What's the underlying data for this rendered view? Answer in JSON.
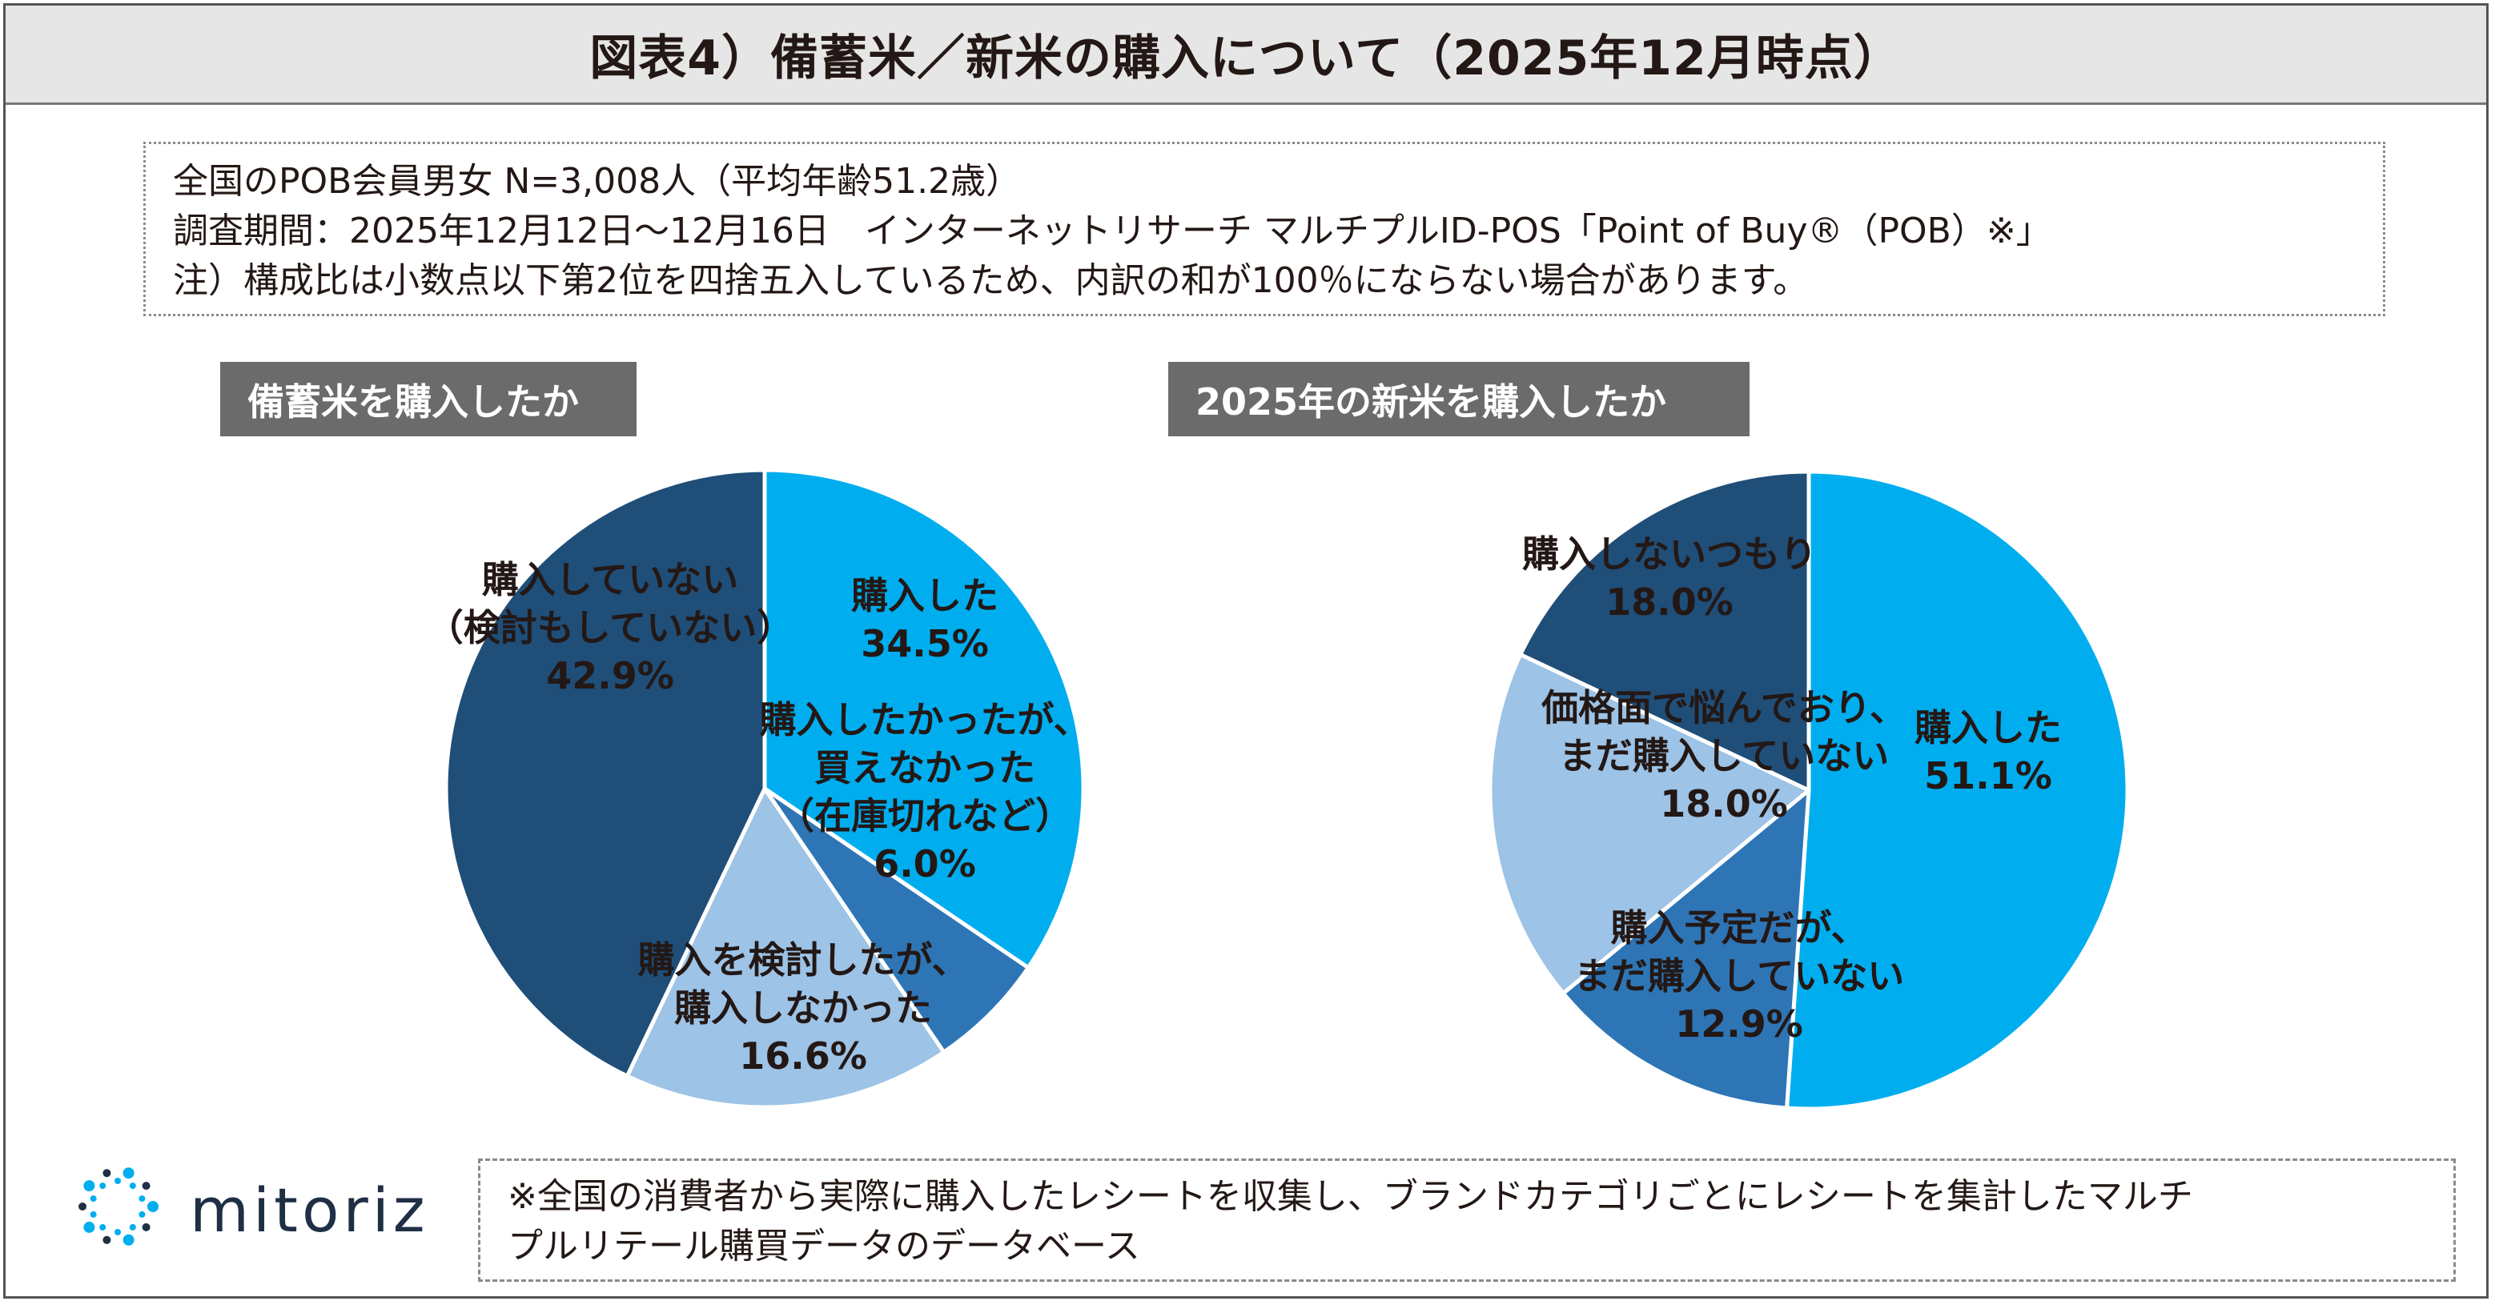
{
  "title": "図表4）備蓄米／新米の購入について（2025年12月時点）",
  "info": {
    "line1": "全国のPOB会員男女 N=3,008人（平均年齢51.2歳）",
    "line2": "調査期間：2025年12月12日～12月16日　インターネットリサーチ マルチプルID-POS「Point of Buy®（POB）※」",
    "line3": "注）構成比は小数点以下第2位を四捨五入しているため、内訳の和が100％にならない場合があります。"
  },
  "footnote": {
    "line1": "※全国の消費者から実際に購入したレシートを収集し、ブランドカテゴリごとにレシートを集計したマルチ",
    "line2": "プルリテール購買データのデータベース"
  },
  "logo": {
    "text": "mitoriz",
    "icon": "sun-ring-icon",
    "color": "#1f2f45",
    "accent": "#00aeef"
  },
  "chart_data": [
    {
      "type": "pie",
      "title": "備蓄米を購入したか",
      "slices": [
        {
          "label": "購入した",
          "value": 34.5,
          "display": "34.5%",
          "color": "#00aeef"
        },
        {
          "label": "購入したかったが、買えなかった（在庫切れなど）",
          "display_lines": [
            "購入したかったが、",
            "買えなかった",
            "（在庫切れなど）"
          ],
          "value": 6.0,
          "display": "6.0%",
          "color": "#2e75b6"
        },
        {
          "label": "購入を検討したが、購入しなかった",
          "display_lines": [
            "購入を検討したが、",
            "購入しなかった"
          ],
          "value": 16.6,
          "display": "16.6%",
          "color": "#9dc3e6"
        },
        {
          "label": "購入していない（検討もしていない）",
          "display_lines": [
            "購入していない",
            "（検討もしていない）"
          ],
          "value": 42.9,
          "display": "42.9%",
          "color": "#1f4e79"
        }
      ]
    },
    {
      "type": "pie",
      "title": "2025年の新米を購入したか",
      "slices": [
        {
          "label": "購入した",
          "value": 51.1,
          "display": "51.1%",
          "color": "#00aeef"
        },
        {
          "label": "購入予定だが、まだ購入していない",
          "display_lines": [
            "購入予定だが、",
            "まだ購入していない"
          ],
          "value": 12.9,
          "display": "12.9%",
          "color": "#2e75b6"
        },
        {
          "label": "価格面で悩んでおり、まだ購入していない",
          "display_lines": [
            "価格面で悩んでおり、",
            "まだ購入していない"
          ],
          "value": 18.0,
          "display": "18.0%",
          "color": "#9dc3e6"
        },
        {
          "label": "購入しないつもり",
          "value": 18.0,
          "display": "18.0%",
          "color": "#1f4e79"
        }
      ]
    }
  ]
}
